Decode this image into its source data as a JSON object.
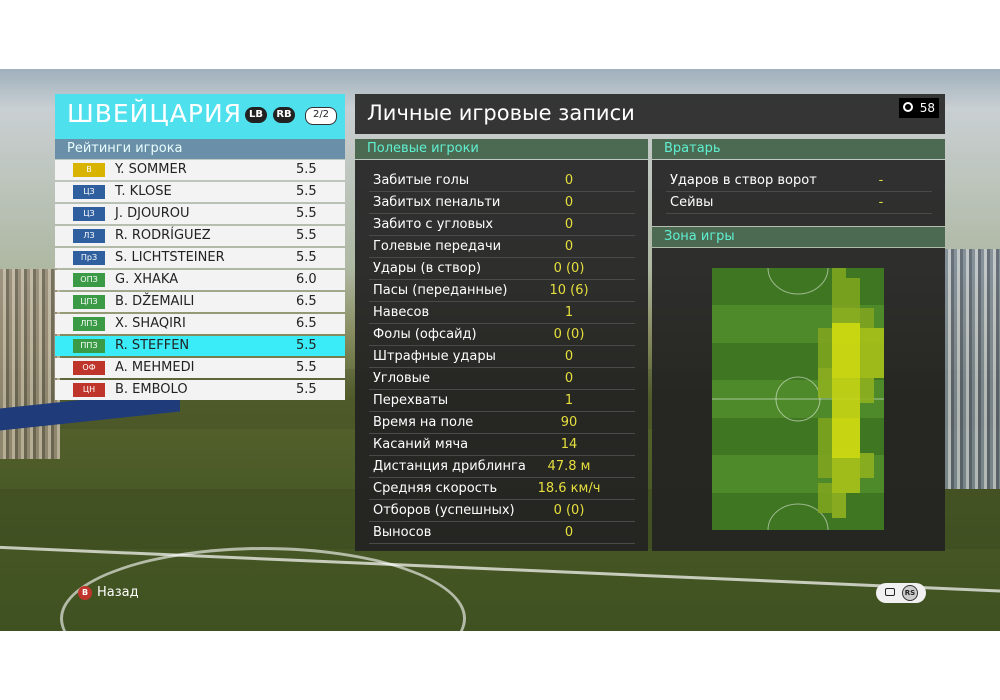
{
  "team": {
    "name": "ШВЕЙЦАРИЯ",
    "lb_button": "LB",
    "rb_button": "RB",
    "page": "2/2",
    "ratings_title": "Рейтинги игрока",
    "players": [
      {
        "pos": "В",
        "pos_color": "#d8b400",
        "name": "Y. SOMMER",
        "rating": "5.5"
      },
      {
        "pos": "ЦЗ",
        "pos_color": "#2f5f9e",
        "name": "T. KLOSE",
        "rating": "5.5"
      },
      {
        "pos": "ЦЗ",
        "pos_color": "#2f5f9e",
        "name": "J. DJOUROU",
        "rating": "5.5"
      },
      {
        "pos": "ЛЗ",
        "pos_color": "#2f5f9e",
        "name": "R. RODRÍGUEZ",
        "rating": "5.5"
      },
      {
        "pos": "ПрЗ",
        "pos_color": "#2f5f9e",
        "name": "S. LICHTSTEINER",
        "rating": "5.5"
      },
      {
        "pos": "ОПЗ",
        "pos_color": "#3a9a45",
        "name": "G. XHAKA",
        "rating": "6.0"
      },
      {
        "pos": "ЦПЗ",
        "pos_color": "#3a9a45",
        "name": "B. DŽEMAILI",
        "rating": "6.5"
      },
      {
        "pos": "ЛПЗ",
        "pos_color": "#3a9a45",
        "name": "X. SHAQIRI",
        "rating": "6.5"
      },
      {
        "pos": "ППЗ",
        "pos_color": "#3a9a45",
        "name": "R. STEFFEN",
        "rating": "5.5"
      },
      {
        "pos": "ОФ",
        "pos_color": "#c0352b",
        "name": "A. MEHMEDI",
        "rating": "5.5"
      },
      {
        "pos": "ЦН",
        "pos_color": "#c0352b",
        "name": "B. EMBOLO",
        "rating": "5.5"
      }
    ],
    "selected_index": 8
  },
  "records": {
    "title": "Личные игровые записи",
    "timer": "58"
  },
  "field_players": {
    "heading": "Полевые игроки",
    "stats": [
      {
        "label": "Забитые голы",
        "value": "0"
      },
      {
        "label": "Забитых пенальти",
        "value": "0"
      },
      {
        "label": "Забито с угловых",
        "value": "0"
      },
      {
        "label": "Голевые передачи",
        "value": "0"
      },
      {
        "label": "Удары (в створ)",
        "value": "0 (0)"
      },
      {
        "label": "Пасы (переданные)",
        "value": "10 (6)"
      },
      {
        "label": "Навесов",
        "value": "1"
      },
      {
        "label": "Фолы (офсайд)",
        "value": "0 (0)"
      },
      {
        "label": "Штрафные удары",
        "value": "0"
      },
      {
        "label": "Угловые",
        "value": "0"
      },
      {
        "label": "Перехваты",
        "value": "1"
      },
      {
        "label": "Время на поле",
        "value": "90"
      },
      {
        "label": "Касаний мяча",
        "value": "14"
      },
      {
        "label": "Дистанция дриблинга",
        "value": "47.8 м"
      },
      {
        "label": "Средняя скорость",
        "value": "18.6 км/ч"
      },
      {
        "label": "Отборов (успешных)",
        "value": "0 (0)"
      },
      {
        "label": "Выносов",
        "value": "0"
      }
    ]
  },
  "goalkeeper": {
    "heading": "Вратарь",
    "stats": [
      {
        "label": "Ударов в створ ворот",
        "value": "-"
      },
      {
        "label": "Сейвы",
        "value": "-"
      }
    ]
  },
  "zone": {
    "heading": "Зона игры",
    "colors": {
      "grass_light": "#4e8a2a",
      "grass_dark": "#3f7622",
      "heat_low": "#7fa51f",
      "heat_mid": "#a9c21a",
      "heat_high": "#d6df10"
    }
  },
  "footer": {
    "back_icon": "B",
    "back_label": "Назад",
    "chat_icon": "chat-icon",
    "rs_icon": "RS"
  }
}
